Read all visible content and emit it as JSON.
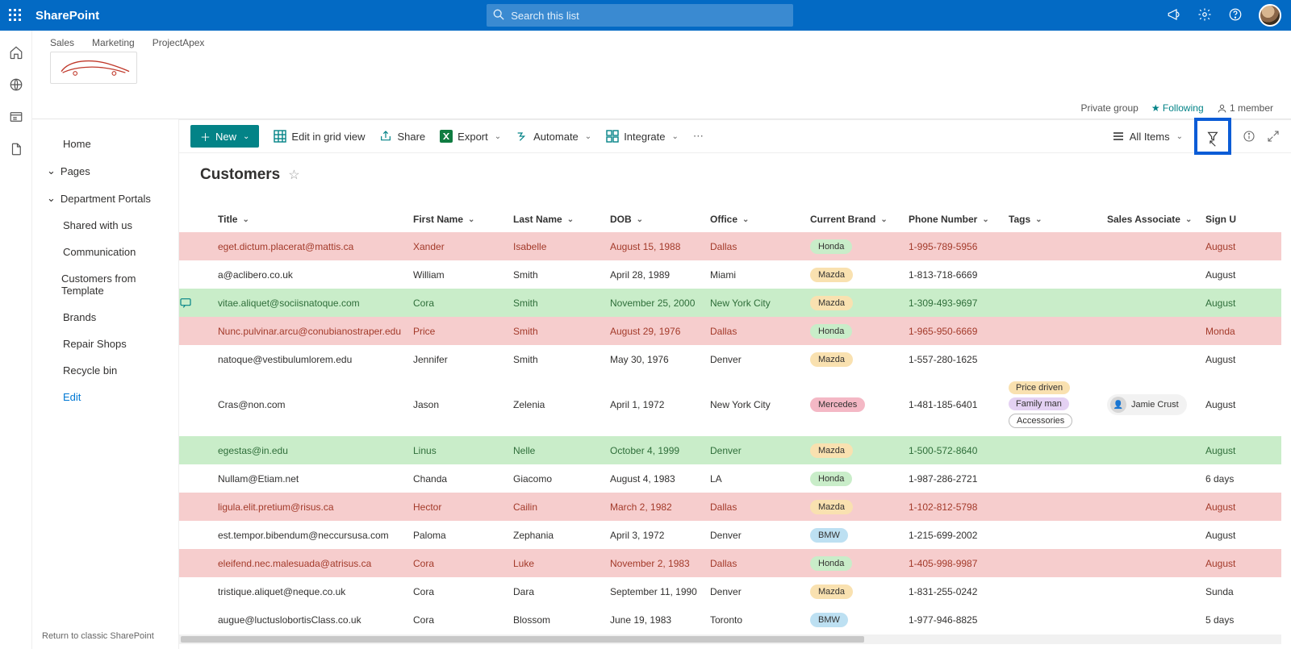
{
  "brand": "SharePoint",
  "search_placeholder": "Search this list",
  "topnav": {
    "a": "Sales",
    "b": "Marketing",
    "c": "ProjectApex"
  },
  "site_meta": {
    "privacy": "Private group",
    "following": "Following",
    "members": "1 member"
  },
  "cmd": {
    "new": "New",
    "edit_grid": "Edit in grid view",
    "share": "Share",
    "export": "Export",
    "automate": "Automate",
    "integrate": "Integrate",
    "all_items": "All Items"
  },
  "leftnav": {
    "home": "Home",
    "pages": "Pages",
    "dept": "Department Portals",
    "shared": "Shared with us",
    "comm": "Communication",
    "cust_tmpl": "Customers from Template",
    "brands": "Brands",
    "repair": "Repair Shops",
    "recycle": "Recycle bin",
    "edit": "Edit",
    "return": "Return to classic SharePoint"
  },
  "list_title": "Customers",
  "columns": {
    "title": "Title",
    "first": "First Name",
    "last": "Last Name",
    "dob": "DOB",
    "office": "Office",
    "brand": "Current Brand",
    "phone": "Phone Number",
    "tags": "Tags",
    "assoc": "Sales Associate",
    "sign": "Sign U"
  },
  "rows": [
    {
      "cls": "red",
      "title": "eget.dictum.placerat@mattis.ca",
      "first": "Xander",
      "last": "Isabelle",
      "dob": "August 15, 1988",
      "office": "Dallas",
      "brand": "Honda",
      "phone": "1-995-789-5956",
      "sign": "August"
    },
    {
      "cls": "",
      "title": "a@aclibero.co.uk",
      "first": "William",
      "last": "Smith",
      "dob": "April 28, 1989",
      "office": "Miami",
      "brand": "Mazda",
      "phone": "1-813-718-6669",
      "sign": "August"
    },
    {
      "cls": "green",
      "comment": true,
      "title": "vitae.aliquet@sociisnatoque.com",
      "first": "Cora",
      "last": "Smith",
      "dob": "November 25, 2000",
      "office": "New York City",
      "brand": "Mazda",
      "phone": "1-309-493-9697",
      "sign": "August"
    },
    {
      "cls": "red",
      "title": "Nunc.pulvinar.arcu@conubianostraper.edu",
      "first": "Price",
      "last": "Smith",
      "dob": "August 29, 1976",
      "office": "Dallas",
      "brand": "Honda",
      "phone": "1-965-950-6669",
      "sign": "Monda"
    },
    {
      "cls": "",
      "title": "natoque@vestibulumlorem.edu",
      "first": "Jennifer",
      "last": "Smith",
      "dob": "May 30, 1976",
      "office": "Denver",
      "brand": "Mazda",
      "phone": "1-557-280-1625",
      "sign": "August"
    },
    {
      "cls": "tall",
      "title": "Cras@non.com",
      "first": "Jason",
      "last": "Zelenia",
      "dob": "April 1, 1972",
      "office": "New York City",
      "brand": "Mercedes",
      "phone": "1-481-185-6401",
      "tags": [
        "Price driven",
        "Family man",
        "Accessories"
      ],
      "assoc": "Jamie Crust",
      "sign": "August"
    },
    {
      "cls": "green",
      "title": "egestas@in.edu",
      "first": "Linus",
      "last": "Nelle",
      "dob": "October 4, 1999",
      "office": "Denver",
      "brand": "Mazda",
      "phone": "1-500-572-8640",
      "sign": "August"
    },
    {
      "cls": "",
      "title": "Nullam@Etiam.net",
      "first": "Chanda",
      "last": "Giacomo",
      "dob": "August 4, 1983",
      "office": "LA",
      "brand": "Honda",
      "phone": "1-987-286-2721",
      "sign": "6 days"
    },
    {
      "cls": "red",
      "title": "ligula.elit.pretium@risus.ca",
      "first": "Hector",
      "last": "Cailin",
      "dob": "March 2, 1982",
      "office": "Dallas",
      "brand": "Mazda",
      "phone": "1-102-812-5798",
      "sign": "August"
    },
    {
      "cls": "",
      "title": "est.tempor.bibendum@neccursusa.com",
      "first": "Paloma",
      "last": "Zephania",
      "dob": "April 3, 1972",
      "office": "Denver",
      "brand": "BMW",
      "phone": "1-215-699-2002",
      "sign": "August"
    },
    {
      "cls": "red",
      "title": "eleifend.nec.malesuada@atrisus.ca",
      "first": "Cora",
      "last": "Luke",
      "dob": "November 2, 1983",
      "office": "Dallas",
      "brand": "Honda",
      "phone": "1-405-998-9987",
      "sign": "August"
    },
    {
      "cls": "",
      "title": "tristique.aliquet@neque.co.uk",
      "first": "Cora",
      "last": "Dara",
      "dob": "September 11, 1990",
      "office": "Denver",
      "brand": "Mazda",
      "phone": "1-831-255-0242",
      "sign": "Sunda"
    },
    {
      "cls": "",
      "title": "augue@luctuslobortisClass.co.uk",
      "first": "Cora",
      "last": "Blossom",
      "dob": "June 19, 1983",
      "office": "Toronto",
      "brand": "BMW",
      "phone": "1-977-946-8825",
      "sign": "5 days"
    }
  ],
  "colors": {
    "suite": "#036ac4",
    "accent_teal": "#038387",
    "row_red": "#f6cdcd",
    "row_green": "#c9edc9",
    "pill_honda": "#c9edc9",
    "pill_mazda": "#f9e1b0",
    "pill_mercedes": "#f4b8c5",
    "pill_bmw": "#bde0f2",
    "filter_highlight_border": "#0b5cd6"
  }
}
